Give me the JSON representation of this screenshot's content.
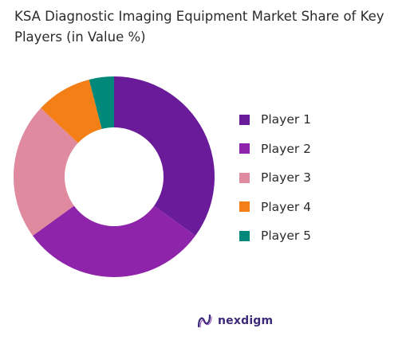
{
  "chart_data": {
    "type": "pie",
    "title": "KSA Diagnostic Imaging Equipment Market Share of Key Players (in Value %)",
    "donut": true,
    "start_angle_deg": 0,
    "direction": "clockwise",
    "legend_position": "right",
    "categories": [
      "Player 1",
      "Player 2",
      "Player 3",
      "Player 4",
      "Player 5"
    ],
    "values": [
      35,
      30,
      22,
      9,
      4
    ],
    "colors": [
      "#6a1b9a",
      "#8e24aa",
      "#e08a9f",
      "#f57f17",
      "#00897b"
    ]
  },
  "brand": {
    "name": "nexdigm",
    "logo_icon": "nexdigm-logo-icon"
  }
}
